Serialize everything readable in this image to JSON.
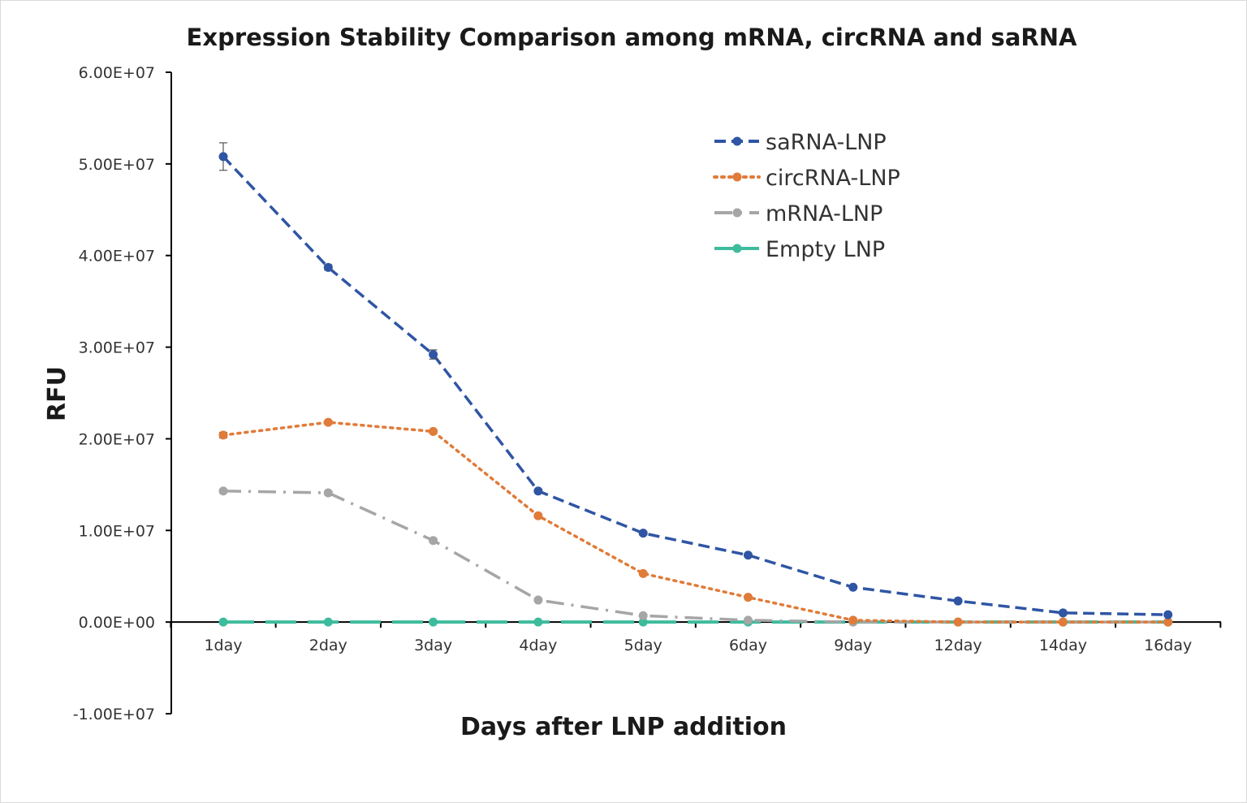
{
  "chart_data": {
    "type": "line",
    "title": "Expression Stability Comparison among mRNA, circRNA and saRNA",
    "xlabel": "Days after LNP addition",
    "ylabel": "RFU",
    "categories": [
      "1day",
      "2day",
      "3day",
      "4day",
      "5day",
      "6day",
      "9day",
      "12day",
      "14day",
      "16day"
    ],
    "ylim": [
      -10000000,
      60000000
    ],
    "yticks": [
      -10000000,
      0,
      10000000,
      20000000,
      30000000,
      40000000,
      50000000,
      60000000
    ],
    "ytick_labels": [
      "-1.00E+07",
      "0.00E+00",
      "1.00E+07",
      "2.00E+07",
      "3.00E+07",
      "4.00E+07",
      "5.00E+07",
      "6.00E+07"
    ],
    "grid": false,
    "legend_position": "top-right",
    "series": [
      {
        "name": "saRNA-LNP",
        "color": "#2f55a4",
        "dash": "dashed",
        "values": [
          50800000,
          38700000,
          29200000,
          14300000,
          9700000,
          7300000,
          3800000,
          2300000,
          1000000,
          800000
        ],
        "errors": [
          1500000,
          300000,
          500000,
          200000,
          200000,
          150000,
          150000,
          100000,
          100000,
          100000
        ]
      },
      {
        "name": "circRNA-LNP",
        "color": "#e07b39",
        "dash": "dotted",
        "values": [
          20400000,
          21800000,
          20800000,
          11600000,
          5300000,
          2700000,
          200000,
          0,
          0,
          0
        ],
        "errors": [
          300000,
          200000,
          200000,
          200000,
          150000,
          100000,
          50000,
          0,
          0,
          0
        ]
      },
      {
        "name": "mRNA-LNP",
        "color": "#a6a6a6",
        "dash": "dashdot",
        "values": [
          14300000,
          14100000,
          8900000,
          2400000,
          700000,
          200000,
          0,
          0,
          0,
          0
        ],
        "errors": [
          200000,
          200000,
          200000,
          100000,
          50000,
          50000,
          0,
          0,
          0,
          0
        ]
      },
      {
        "name": "Empty LNP",
        "color": "#3dbb9d",
        "dash": "longdash",
        "values": [
          0,
          0,
          0,
          0,
          0,
          0,
          0,
          0,
          0,
          0
        ],
        "errors": [
          0,
          0,
          0,
          0,
          0,
          0,
          0,
          0,
          0,
          0
        ]
      }
    ]
  }
}
